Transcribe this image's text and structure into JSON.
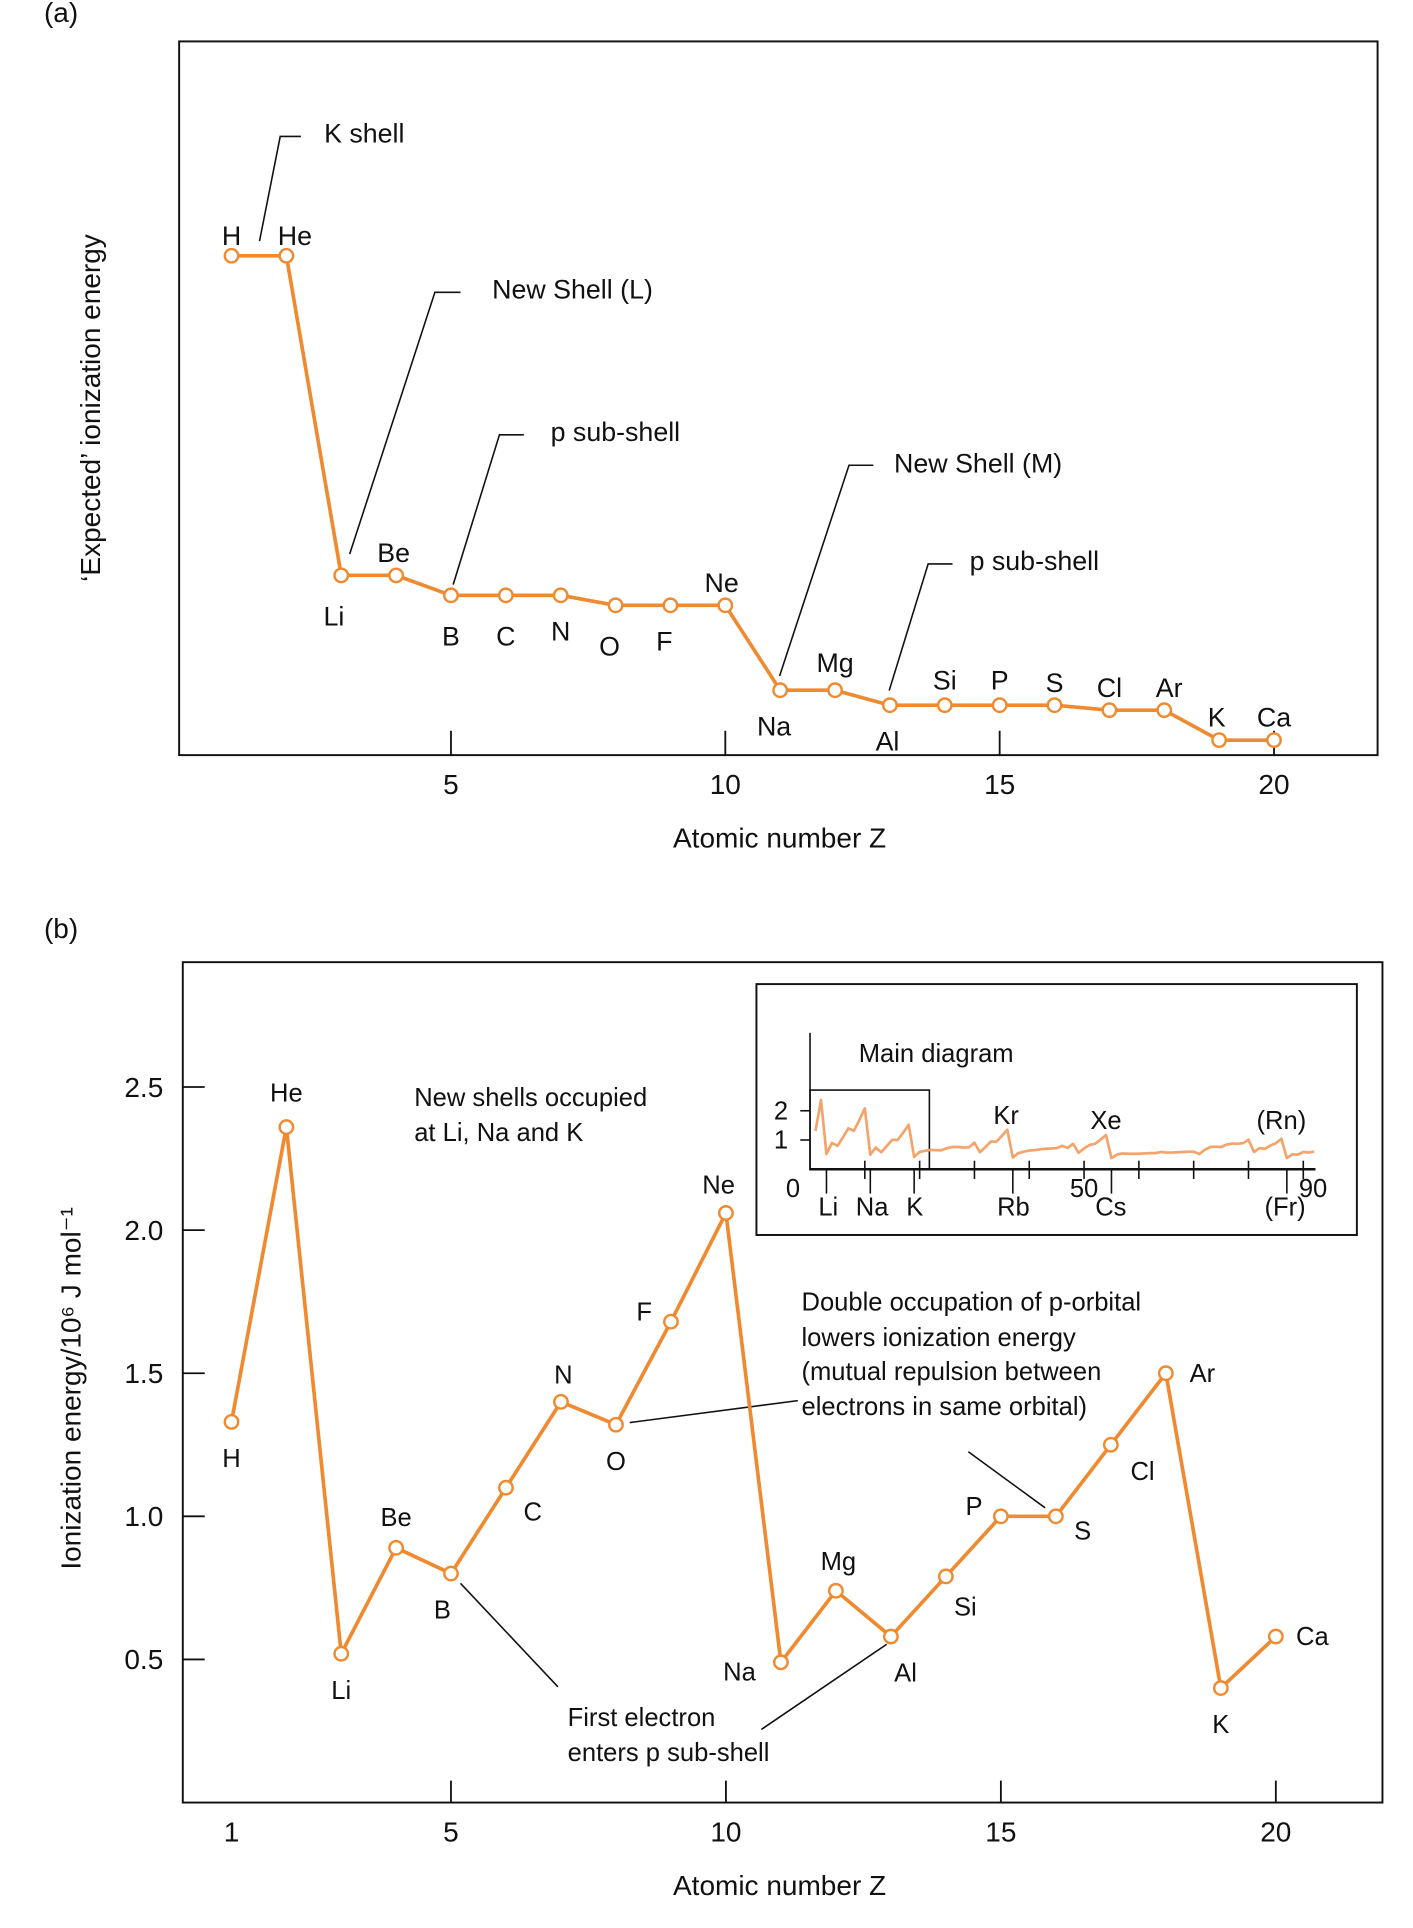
{
  "panel_labels": {
    "a": "(a)",
    "b": "(b)"
  },
  "chart_data": [
    {
      "type": "line",
      "panel": "(a)",
      "xlabel": "Atomic number Z",
      "ylabel": "‘Expected’ ionization energy",
      "x_ticks": [
        5,
        10,
        15,
        20
      ],
      "xlim": [
        0,
        22
      ],
      "ylim": [
        0,
        1
      ],
      "y_scale_note": "no y tick labels; values are relative (H = 1)",
      "color": "#F08A30",
      "elements": [
        "H",
        "He",
        "Li",
        "Be",
        "B",
        "C",
        "N",
        "O",
        "F",
        "Ne",
        "Na",
        "Mg",
        "Al",
        "Si",
        "P",
        "S",
        "Cl",
        "Ar",
        "K",
        "Ca"
      ],
      "x": [
        1,
        2,
        3,
        4,
        5,
        6,
        7,
        8,
        9,
        10,
        11,
        12,
        13,
        14,
        15,
        16,
        17,
        18,
        19,
        20
      ],
      "values": [
        1.0,
        1.0,
        0.36,
        0.36,
        0.32,
        0.32,
        0.32,
        0.3,
        0.3,
        0.3,
        0.13,
        0.13,
        0.1,
        0.1,
        0.1,
        0.1,
        0.09,
        0.09,
        0.03,
        0.03
      ],
      "annotations": [
        "K shell",
        "New Shell (L)",
        "p sub-shell",
        "New Shell (M)",
        "p sub-shell"
      ]
    },
    {
      "type": "line",
      "panel": "(b)",
      "xlabel": "Atomic number Z",
      "ylabel": "Ionization energy/10⁶ J mol⁻¹",
      "x_ticks": [
        1,
        5,
        10,
        15,
        20
      ],
      "y_ticks": [
        "0.5",
        "1.0",
        "1.5",
        "2.0",
        "2.5"
      ],
      "xlim": [
        0,
        22
      ],
      "ylim": [
        0,
        2.94
      ],
      "color": "#F08A30",
      "elements": [
        "H",
        "He",
        "Li",
        "Be",
        "B",
        "C",
        "N",
        "O",
        "F",
        "Ne",
        "Na",
        "Mg",
        "Al",
        "Si",
        "P",
        "S",
        "Cl",
        "Ar",
        "K",
        "Ca"
      ],
      "x": [
        1,
        2,
        3,
        4,
        5,
        6,
        7,
        8,
        9,
        10,
        11,
        12,
        13,
        14,
        15,
        16,
        17,
        18,
        19,
        20
      ],
      "values": [
        1.33,
        2.36,
        0.52,
        0.89,
        0.8,
        1.1,
        1.4,
        1.32,
        1.68,
        2.06,
        0.49,
        0.74,
        0.58,
        0.79,
        1.0,
        1.0,
        1.25,
        1.5,
        0.4,
        0.58
      ],
      "annotations": [
        "New shells occupied",
        "at Li, Na and K",
        "Double occupation of p-orbital",
        "lowers ionization energy",
        "(mutual repulsion between",
        "electrons in same orbital)",
        "First electron",
        "enters p sub-shell"
      ],
      "inset": {
        "title": "Main diagram",
        "y_ticks": [
          "1",
          "2"
        ],
        "x_ticks": [
          "0",
          "50",
          "90"
        ],
        "element_marks": [
          "Li",
          "Na",
          "K",
          "Rb",
          "Cs",
          "(Fr)"
        ],
        "peak_labels": [
          "Kr",
          "Xe",
          "(Rn)"
        ],
        "color": "#F4A46A",
        "xlim": [
          0,
          92
        ],
        "ylim": [
          0,
          2.5
        ],
        "values": [
          1.31,
          2.37,
          0.52,
          0.9,
          0.8,
          1.09,
          1.4,
          1.31,
          1.68,
          2.08,
          0.5,
          0.74,
          0.58,
          0.79,
          1.01,
          1.0,
          1.25,
          1.52,
          0.42,
          0.59,
          0.63,
          0.66,
          0.65,
          0.65,
          0.72,
          0.76,
          0.76,
          0.74,
          0.75,
          0.91,
          0.58,
          0.76,
          0.95,
          0.94,
          1.14,
          1.35,
          0.4,
          0.55,
          0.6,
          0.64,
          0.65,
          0.68,
          0.7,
          0.71,
          0.72,
          0.8,
          0.73,
          0.87,
          0.56,
          0.71,
          0.83,
          0.87,
          1.01,
          1.17,
          0.38,
          0.5,
          0.54,
          0.53,
          0.53,
          0.53,
          0.54,
          0.55,
          0.55,
          0.59,
          0.57,
          0.57,
          0.58,
          0.59,
          0.6,
          0.6,
          0.52,
          0.66,
          0.76,
          0.77,
          0.76,
          0.84,
          0.88,
          0.87,
          0.89,
          1.01,
          0.59,
          0.72,
          0.7,
          0.81,
          0.89,
          1.04,
          0.38,
          0.51,
          0.5,
          0.59,
          0.57,
          0.6
        ]
      }
    }
  ]
}
